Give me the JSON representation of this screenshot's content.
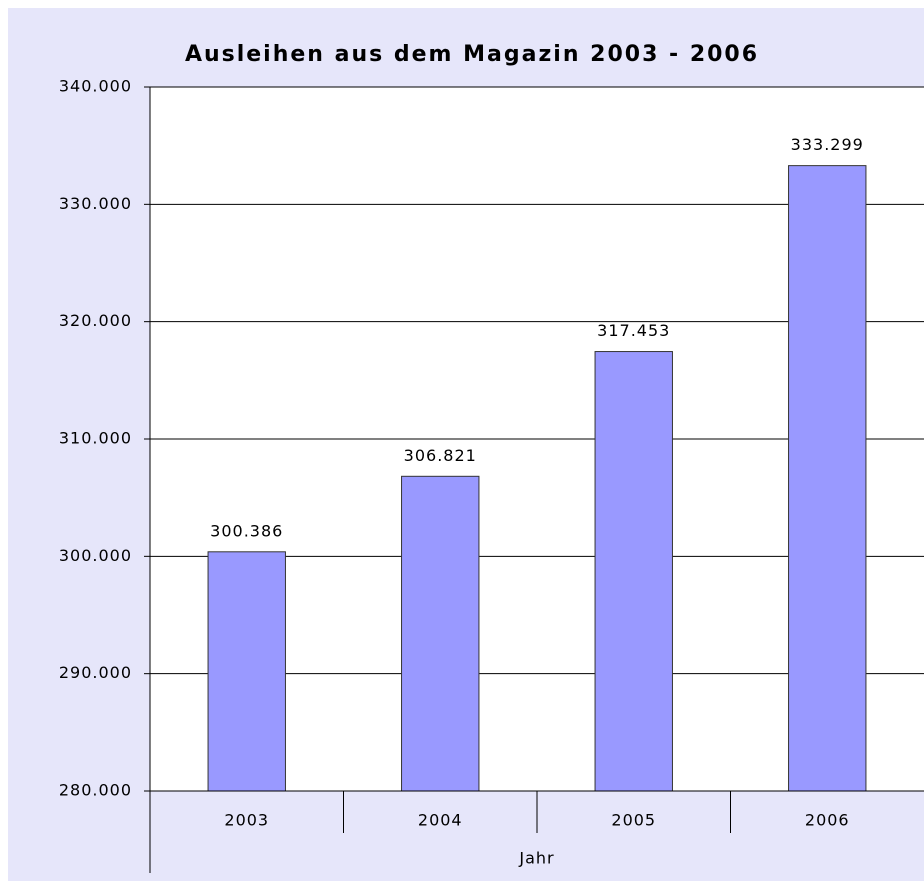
{
  "chart_data": {
    "type": "bar",
    "title": "Ausleihen aus dem Magazin 2003 - 2006",
    "x_label": "Jahr",
    "categories": [
      "2003",
      "2004",
      "2005",
      "2006"
    ],
    "values": [
      300386,
      306821,
      317453,
      333299
    ],
    "value_labels": [
      "300.386",
      "306.821",
      "317.453",
      "333.299"
    ],
    "color": "#9999ff",
    "ylim": [
      280000,
      340000
    ],
    "yticks": [
      {
        "value": 280000,
        "label": "280.000"
      },
      {
        "value": 290000,
        "label": "290.000"
      },
      {
        "value": 300000,
        "label": "300.000"
      },
      {
        "value": 310000,
        "label": "310.000"
      },
      {
        "value": 320000,
        "label": "320.000"
      },
      {
        "value": 330000,
        "label": "330.000"
      },
      {
        "value": 340000,
        "label": "340.000"
      }
    ],
    "grid": true
  }
}
